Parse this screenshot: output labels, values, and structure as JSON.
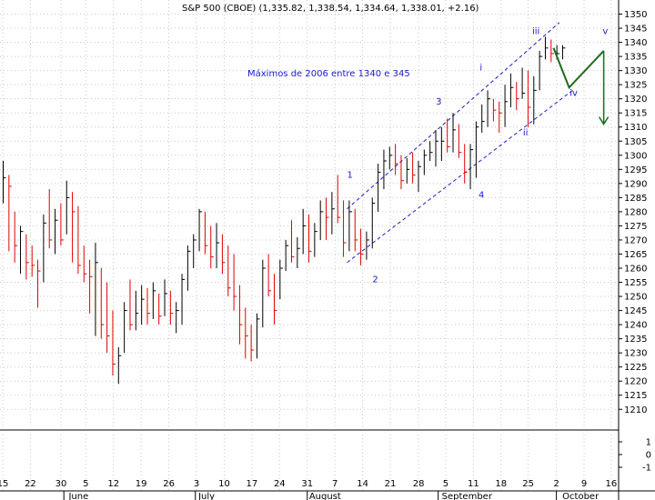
{
  "chart_data": {
    "type": "ohlc",
    "title": "S&P 500 (CBOE) (1,335.82, 1,338.54, 1,334.64, 1,338.01, +2.16)",
    "annotation": "Máximos de 2006 entre 1340 e 345",
    "colors": {
      "up": "#000000",
      "down": "#e00000",
      "grid": "#c8c8c8",
      "channel": "#1a1acc",
      "projection": "#1b6b1b",
      "label": "#1a1acc"
    },
    "ylim": [
      1203,
      1355
    ],
    "y_ticks": [
      1210,
      1215,
      1220,
      1225,
      1230,
      1235,
      1240,
      1245,
      1250,
      1255,
      1260,
      1265,
      1270,
      1275,
      1280,
      1285,
      1290,
      1295,
      1300,
      1305,
      1310,
      1315,
      1320,
      1325,
      1330,
      1335,
      1340,
      1345,
      1350
    ],
    "indicator_ticks": [
      "1",
      "0",
      "-1"
    ],
    "x_ticks": [
      "15",
      "22",
      "30",
      "5",
      "12",
      "19",
      "26",
      "3",
      "10",
      "17",
      "24",
      "31",
      "7",
      "14",
      "21",
      "28",
      "5",
      "11",
      "18",
      "25",
      "2",
      "9",
      "16"
    ],
    "months": [
      "June",
      "July",
      "August",
      "September",
      "October"
    ],
    "bars": [
      [
        1298,
        1283,
        1292
      ],
      [
        1293,
        1266,
        1289
      ],
      [
        1280,
        1262,
        1268
      ],
      [
        1275,
        1258,
        1273
      ],
      [
        1272,
        1256,
        1262
      ],
      [
        1268,
        1257,
        1261
      ],
      [
        1263,
        1246,
        1259
      ],
      [
        1279,
        1255,
        1276
      ],
      [
        1288,
        1267,
        1270
      ],
      [
        1281,
        1265,
        1277
      ],
      [
        1283,
        1268,
        1270
      ],
      [
        1291,
        1272,
        1285
      ],
      [
        1287,
        1262,
        1280
      ],
      [
        1282,
        1258,
        1261
      ],
      [
        1268,
        1255,
        1258
      ],
      [
        1263,
        1244,
        1257
      ],
      [
        1269,
        1236,
        1262
      ],
      [
        1260,
        1235,
        1240
      ],
      [
        1255,
        1230,
        1236
      ],
      [
        1245,
        1222,
        1226
      ],
      [
        1232,
        1219,
        1229
      ],
      [
        1248,
        1230,
        1245
      ],
      [
        1256,
        1238,
        1240
      ],
      [
        1252,
        1238,
        1244
      ],
      [
        1254,
        1240,
        1249
      ],
      [
        1253,
        1240,
        1244
      ],
      [
        1255,
        1242,
        1252
      ],
      [
        1251,
        1240,
        1243
      ],
      [
        1256,
        1243,
        1251
      ],
      [
        1252,
        1240,
        1244
      ],
      [
        1248,
        1237,
        1245
      ],
      [
        1258,
        1240,
        1256
      ],
      [
        1268,
        1252,
        1266
      ],
      [
        1272,
        1260,
        1270
      ],
      [
        1281,
        1266,
        1280
      ],
      [
        1280,
        1265,
        1268
      ],
      [
        1275,
        1260,
        1264
      ],
      [
        1276,
        1260,
        1269
      ],
      [
        1272,
        1258,
        1262
      ],
      [
        1268,
        1250,
        1253
      ],
      [
        1265,
        1245,
        1250
      ],
      [
        1254,
        1233,
        1240
      ],
      [
        1246,
        1228,
        1236
      ],
      [
        1240,
        1227,
        1231
      ],
      [
        1244,
        1228,
        1242
      ],
      [
        1263,
        1239,
        1260
      ],
      [
        1265,
        1250,
        1252
      ],
      [
        1258,
        1240,
        1245
      ],
      [
        1263,
        1249,
        1260
      ],
      [
        1270,
        1259,
        1268
      ],
      [
        1277,
        1262,
        1264
      ],
      [
        1271,
        1260,
        1267
      ],
      [
        1281,
        1265,
        1275
      ],
      [
        1279,
        1262,
        1266
      ],
      [
        1276,
        1264,
        1273
      ],
      [
        1284,
        1270,
        1280
      ],
      [
        1285,
        1270,
        1278
      ],
      [
        1287,
        1272,
        1281
      ],
      [
        1293,
        1276,
        1278
      ],
      [
        1284,
        1264,
        1269
      ],
      [
        1284,
        1266,
        1280
      ],
      [
        1281,
        1266,
        1270
      ],
      [
        1274,
        1261,
        1265
      ],
      [
        1273,
        1263,
        1270
      ],
      [
        1285,
        1267,
        1283
      ],
      [
        1297,
        1280,
        1294
      ],
      [
        1302,
        1288,
        1298
      ],
      [
        1303,
        1295,
        1300
      ],
      [
        1304,
        1293,
        1297
      ],
      [
        1300,
        1288,
        1291
      ],
      [
        1299,
        1290,
        1295
      ],
      [
        1301,
        1290,
        1293
      ],
      [
        1298,
        1287,
        1296
      ],
      [
        1302,
        1293,
        1300
      ],
      [
        1305,
        1298,
        1301
      ],
      [
        1309,
        1296,
        1305
      ],
      [
        1310,
        1298,
        1305
      ],
      [
        1313,
        1301,
        1303
      ],
      [
        1315,
        1301,
        1309
      ],
      [
        1311,
        1299,
        1301
      ],
      [
        1304,
        1290,
        1294
      ],
      [
        1304,
        1288,
        1302
      ],
      [
        1312,
        1292,
        1310
      ],
      [
        1318,
        1308,
        1312
      ],
      [
        1323,
        1310,
        1320
      ],
      [
        1320,
        1312,
        1316
      ],
      [
        1319,
        1308,
        1315
      ],
      [
        1325,
        1310,
        1319
      ],
      [
        1329,
        1317,
        1324
      ],
      [
        1326,
        1316,
        1320
      ],
      [
        1331,
        1320,
        1322
      ],
      [
        1330,
        1310,
        1317
      ],
      [
        1328,
        1311,
        1323
      ],
      [
        1337,
        1323,
        1335
      ],
      [
        1342,
        1334,
        1338
      ],
      [
        1341,
        1333,
        1336
      ],
      [
        1339,
        1334,
        1336
      ],
      [
        1339,
        1334,
        1338
      ]
    ],
    "wave_labels": [
      "1",
      "2",
      "3",
      "4",
      "i",
      "ii",
      "iii",
      "iv",
      "v"
    ]
  }
}
